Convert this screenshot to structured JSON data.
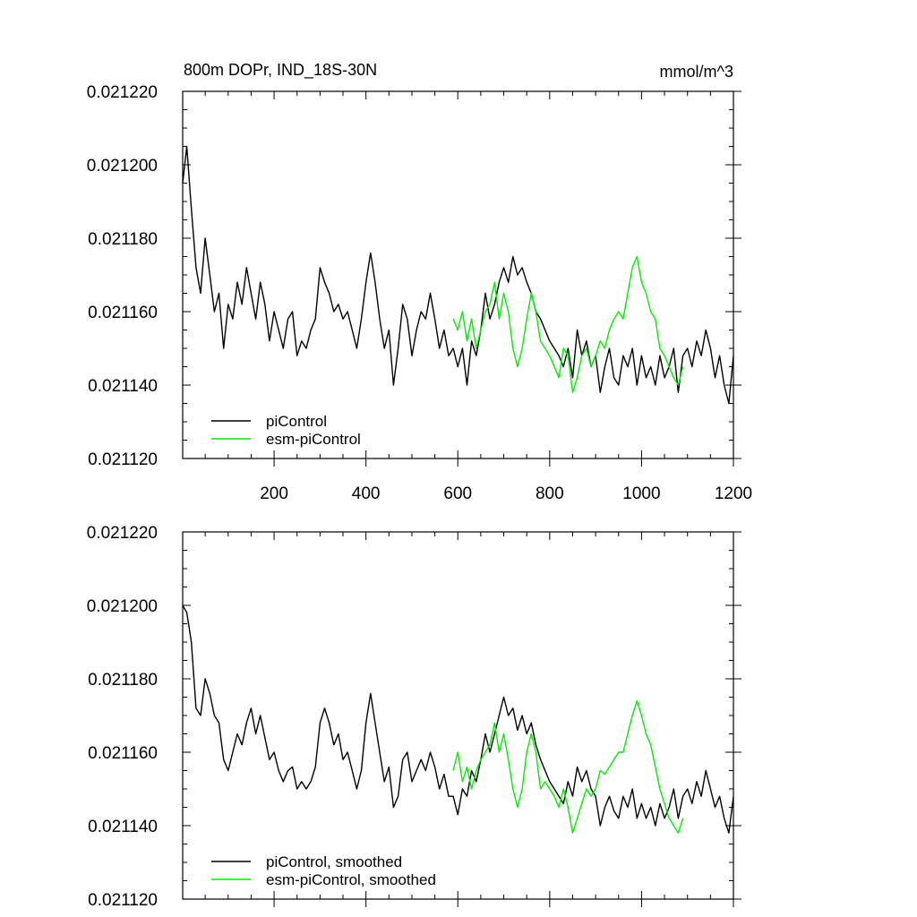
{
  "chart_data": [
    {
      "type": "line",
      "title": "800m DOPr, IND_18S-30N",
      "units": "mmol/m^3",
      "xlim": [
        1,
        1200
      ],
      "ylim": [
        0.02112,
        0.02122
      ],
      "x_ticks": [
        200,
        400,
        600,
        800,
        1000,
        1200
      ],
      "x_tick_labels": [
        "200",
        "400",
        "600",
        "800",
        "1000",
        "1200"
      ],
      "y_ticks": [
        0.02112,
        0.02114,
        0.02116,
        0.02118,
        0.0212,
        0.02122
      ],
      "y_tick_labels": [
        "0.021120",
        "0.021140",
        "0.021160",
        "0.021180",
        "0.021200",
        "0.021220"
      ],
      "legend_position": "bottom-left",
      "series": [
        {
          "name": "piControl",
          "color": "#000000",
          "x": [
            1,
            10,
            20,
            30,
            40,
            50,
            60,
            70,
            80,
            90,
            100,
            110,
            120,
            130,
            140,
            150,
            160,
            170,
            180,
            190,
            200,
            210,
            220,
            230,
            240,
            250,
            260,
            270,
            280,
            290,
            300,
            310,
            320,
            330,
            340,
            350,
            360,
            370,
            380,
            390,
            400,
            410,
            420,
            430,
            440,
            450,
            460,
            470,
            480,
            490,
            500,
            510,
            520,
            530,
            540,
            550,
            560,
            570,
            580,
            590,
            600,
            610,
            620,
            630,
            640,
            650,
            660,
            670,
            680,
            690,
            700,
            710,
            720,
            730,
            740,
            750,
            760,
            770,
            780,
            790,
            800,
            810,
            820,
            830,
            840,
            850,
            860,
            870,
            880,
            890,
            900,
            910,
            920,
            930,
            940,
            950,
            960,
            970,
            980,
            990,
            1000,
            1010,
            1020,
            1030,
            1040,
            1050,
            1060,
            1070,
            1080,
            1090,
            1100,
            1110,
            1120,
            1130,
            1140,
            1150,
            1160,
            1170,
            1180,
            1190,
            1200
          ],
          "values": [
            0.021195,
            0.021205,
            0.021188,
            0.021172,
            0.021165,
            0.02118,
            0.02117,
            0.02116,
            0.021165,
            0.02115,
            0.021162,
            0.021158,
            0.021168,
            0.021162,
            0.021172,
            0.021165,
            0.021158,
            0.021168,
            0.021162,
            0.021152,
            0.02116,
            0.021155,
            0.02115,
            0.021158,
            0.02116,
            0.021148,
            0.021152,
            0.02115,
            0.021155,
            0.021158,
            0.021172,
            0.021168,
            0.021165,
            0.02116,
            0.021162,
            0.021158,
            0.02116,
            0.021155,
            0.02115,
            0.021158,
            0.021168,
            0.021176,
            0.021168,
            0.021158,
            0.02115,
            0.021155,
            0.02114,
            0.02115,
            0.021162,
            0.021158,
            0.021148,
            0.021155,
            0.02116,
            0.021158,
            0.021165,
            0.021158,
            0.02115,
            0.021155,
            0.021148,
            0.02115,
            0.021145,
            0.02115,
            0.02114,
            0.021152,
            0.021148,
            0.021155,
            0.021165,
            0.021158,
            0.021162,
            0.021168,
            0.021172,
            0.021168,
            0.021175,
            0.02117,
            0.021172,
            0.021168,
            0.021165,
            0.02116,
            0.021158,
            0.021155,
            0.021152,
            0.02115,
            0.021148,
            0.021145,
            0.02115,
            0.021142,
            0.021155,
            0.021148,
            0.021152,
            0.021145,
            0.021148,
            0.021138,
            0.021145,
            0.02115,
            0.021142,
            0.02114,
            0.021148,
            0.021145,
            0.02115,
            0.02114,
            0.021148,
            0.021142,
            0.021145,
            0.02114,
            0.021148,
            0.021142,
            0.021145,
            0.02115,
            0.021138,
            0.021148,
            0.02115,
            0.021145,
            0.021152,
            0.021148,
            0.021155,
            0.02115,
            0.021142,
            0.021148,
            0.02114,
            0.021135,
            0.021148
          ]
        },
        {
          "name": "esm-piControl",
          "color": "#00ee00",
          "x": [
            590,
            600,
            610,
            620,
            630,
            640,
            650,
            660,
            670,
            680,
            690,
            700,
            710,
            720,
            730,
            740,
            750,
            760,
            770,
            780,
            790,
            800,
            810,
            820,
            830,
            840,
            850,
            860,
            870,
            880,
            890,
            900,
            910,
            920,
            930,
            940,
            950,
            960,
            970,
            980,
            990,
            1000,
            1010,
            1020,
            1030,
            1040,
            1050,
            1060,
            1070,
            1080,
            1090
          ],
          "values": [
            0.021158,
            0.021155,
            0.02116,
            0.021152,
            0.021158,
            0.02115,
            0.021155,
            0.02116,
            0.021162,
            0.021168,
            0.021158,
            0.021165,
            0.02116,
            0.02115,
            0.021145,
            0.02115,
            0.021158,
            0.021165,
            0.02116,
            0.021152,
            0.02115,
            0.021148,
            0.021145,
            0.021142,
            0.02115,
            0.021148,
            0.021138,
            0.021142,
            0.021148,
            0.02115,
            0.021145,
            0.021148,
            0.021152,
            0.02115,
            0.021155,
            0.021158,
            0.02116,
            0.021158,
            0.021165,
            0.021172,
            0.021175,
            0.021168,
            0.021165,
            0.02116,
            0.021158,
            0.02115,
            0.021148,
            0.021145,
            0.021142,
            0.02114,
            0.021145
          ]
        }
      ]
    },
    {
      "type": "line",
      "xlim": [
        1,
        1200
      ],
      "ylim": [
        0.02112,
        0.02122
      ],
      "x_ticks": [
        200,
        400,
        600,
        800,
        1000,
        1200
      ],
      "y_ticks": [
        0.02112,
        0.02114,
        0.02116,
        0.02118,
        0.0212,
        0.02122
      ],
      "y_tick_labels": [
        "0.021120",
        "0.021140",
        "0.021160",
        "0.021180",
        "0.021200",
        "0.021220"
      ],
      "legend_position": "bottom-left",
      "series": [
        {
          "name": "piControl, smoothed",
          "color": "#000000",
          "x": [
            1,
            10,
            20,
            30,
            40,
            50,
            60,
            70,
            80,
            90,
            100,
            110,
            120,
            130,
            140,
            150,
            160,
            170,
            180,
            190,
            200,
            210,
            220,
            230,
            240,
            250,
            260,
            270,
            280,
            290,
            300,
            310,
            320,
            330,
            340,
            350,
            360,
            370,
            380,
            390,
            400,
            410,
            420,
            430,
            440,
            450,
            460,
            470,
            480,
            490,
            500,
            510,
            520,
            530,
            540,
            550,
            560,
            570,
            580,
            590,
            600,
            610,
            620,
            630,
            640,
            650,
            660,
            670,
            680,
            690,
            700,
            710,
            720,
            730,
            740,
            750,
            760,
            770,
            780,
            790,
            800,
            810,
            820,
            830,
            840,
            850,
            860,
            870,
            880,
            890,
            900,
            910,
            920,
            930,
            940,
            950,
            960,
            970,
            980,
            990,
            1000,
            1010,
            1020,
            1030,
            1040,
            1050,
            1060,
            1070,
            1080,
            1090,
            1100,
            1110,
            1120,
            1130,
            1140,
            1150,
            1160,
            1170,
            1180,
            1190,
            1200
          ],
          "values": [
            0.0212,
            0.021198,
            0.02119,
            0.021172,
            0.02117,
            0.02118,
            0.021176,
            0.02117,
            0.021168,
            0.021158,
            0.021155,
            0.02116,
            0.021165,
            0.021162,
            0.021168,
            0.021172,
            0.021165,
            0.02117,
            0.021164,
            0.021158,
            0.02116,
            0.021155,
            0.021152,
            0.021155,
            0.021156,
            0.02115,
            0.021152,
            0.02115,
            0.021152,
            0.021156,
            0.021168,
            0.021172,
            0.021168,
            0.021162,
            0.021165,
            0.021158,
            0.02116,
            0.021155,
            0.02115,
            0.021155,
            0.021168,
            0.021176,
            0.021168,
            0.02116,
            0.021152,
            0.021156,
            0.021145,
            0.021148,
            0.021158,
            0.02116,
            0.021152,
            0.021155,
            0.021158,
            0.021155,
            0.02116,
            0.021156,
            0.02115,
            0.021154,
            0.021148,
            0.021148,
            0.021143,
            0.02115,
            0.021148,
            0.021155,
            0.021152,
            0.021158,
            0.021165,
            0.02116,
            0.021165,
            0.02117,
            0.021175,
            0.02117,
            0.021172,
            0.021166,
            0.02117,
            0.021165,
            0.021168,
            0.021162,
            0.021158,
            0.021155,
            0.021152,
            0.02115,
            0.021148,
            0.021146,
            0.021152,
            0.021148,
            0.021156,
            0.021152,
            0.021155,
            0.02115,
            0.021148,
            0.02114,
            0.021145,
            0.021148,
            0.021144,
            0.021142,
            0.021148,
            0.021145,
            0.02115,
            0.021142,
            0.021146,
            0.021142,
            0.021145,
            0.02114,
            0.021146,
            0.021142,
            0.021145,
            0.02115,
            0.021142,
            0.021148,
            0.02115,
            0.021146,
            0.021152,
            0.021148,
            0.021155,
            0.02115,
            0.021145,
            0.021148,
            0.021142,
            0.021138,
            0.021148
          ]
        },
        {
          "name": "esm-piControl, smoothed",
          "color": "#00ee00",
          "x": [
            590,
            600,
            610,
            620,
            630,
            640,
            650,
            660,
            670,
            680,
            690,
            700,
            710,
            720,
            730,
            740,
            750,
            760,
            770,
            780,
            790,
            800,
            810,
            820,
            830,
            840,
            850,
            860,
            870,
            880,
            890,
            900,
            910,
            920,
            930,
            940,
            950,
            960,
            970,
            980,
            990,
            1000,
            1010,
            1020,
            1030,
            1040,
            1050,
            1060,
            1070,
            1080,
            1090
          ],
          "values": [
            0.021155,
            0.02116,
            0.021152,
            0.021156,
            0.02115,
            0.021155,
            0.021158,
            0.02116,
            0.021162,
            0.021168,
            0.02116,
            0.021165,
            0.021158,
            0.02115,
            0.021145,
            0.02115,
            0.02116,
            0.021165,
            0.02116,
            0.02115,
            0.021152,
            0.02115,
            0.021148,
            0.021145,
            0.02115,
            0.021145,
            0.021138,
            0.021142,
            0.021146,
            0.02115,
            0.021148,
            0.02115,
            0.021155,
            0.021154,
            0.021156,
            0.021158,
            0.02116,
            0.02116,
            0.021165,
            0.02117,
            0.021174,
            0.02117,
            0.021165,
            0.021162,
            0.021156,
            0.02115,
            0.021146,
            0.021142,
            0.02114,
            0.021138,
            0.021142
          ]
        }
      ]
    }
  ]
}
